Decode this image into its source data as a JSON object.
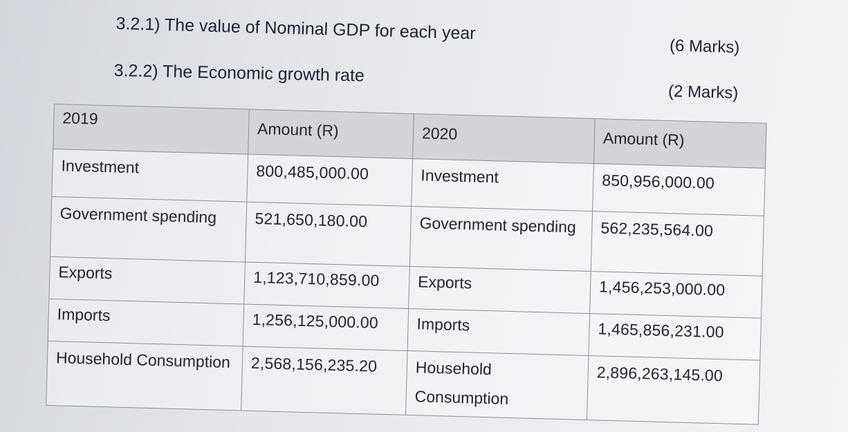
{
  "questions": [
    {
      "text": "3.2.1) The value of Nominal GDP for each year",
      "marks": "(6 Marks)"
    },
    {
      "text": "3.2.2) The Economic growth rate",
      "marks": "(2 Marks)"
    }
  ],
  "table": {
    "headers": [
      "2019",
      "Amount (R)",
      "2020",
      "Amount (R)"
    ],
    "rows": [
      {
        "item_2019": "Investment",
        "amount_2019": "800,485,000.00",
        "item_2020": "Investment",
        "amount_2020": "850,956,000.00"
      },
      {
        "item_2019": "Government spending",
        "amount_2019": "521,650,180.00",
        "item_2020": "Government spending",
        "amount_2020": "562,235,564.00"
      },
      {
        "item_2019": "Exports",
        "amount_2019": "1,123,710,859.00",
        "item_2020": "Exports",
        "amount_2020": "1,456,253,000.00"
      },
      {
        "item_2019": "Imports",
        "amount_2019": "1,256,125,000.00",
        "item_2020": "Imports",
        "amount_2020": "1,465,856,231.00"
      },
      {
        "item_2019": "Household Consumption",
        "amount_2019": "2,568,156,235.20",
        "item_2020": "Household Consumption",
        "amount_2020": "2,896,263,145.00"
      }
    ]
  }
}
